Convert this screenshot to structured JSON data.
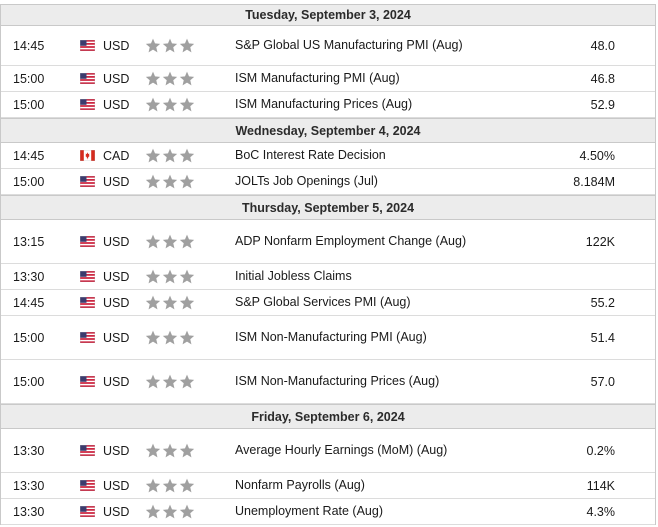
{
  "calendar": {
    "days": [
      {
        "date": "Tuesday, September 3, 2024",
        "events": [
          {
            "time": "14:45",
            "currency": "USD",
            "flag": "us-flag-icon",
            "importance": 3,
            "name": "S&P Global US Manufacturing PMI (Aug)",
            "actual": "48.0"
          },
          {
            "time": "15:00",
            "currency": "USD",
            "flag": "us-flag-icon",
            "importance": 3,
            "name": "ISM Manufacturing PMI (Aug)",
            "actual": "46.8"
          },
          {
            "time": "15:00",
            "currency": "USD",
            "flag": "us-flag-icon",
            "importance": 3,
            "name": "ISM Manufacturing Prices (Aug)",
            "actual": "52.9"
          }
        ]
      },
      {
        "date": "Wednesday, September 4, 2024",
        "events": [
          {
            "time": "14:45",
            "currency": "CAD",
            "flag": "ca-flag-icon",
            "importance": 3,
            "name": "BoC Interest Rate Decision",
            "actual": "4.50%"
          },
          {
            "time": "15:00",
            "currency": "USD",
            "flag": "us-flag-icon",
            "importance": 3,
            "name": "JOLTs Job Openings (Jul)",
            "actual": "8.184M"
          }
        ]
      },
      {
        "date": "Thursday, September 5, 2024",
        "events": [
          {
            "time": "13:15",
            "currency": "USD",
            "flag": "us-flag-icon",
            "importance": 3,
            "name": "ADP Nonfarm Employment Change (Aug)",
            "actual": "122K"
          },
          {
            "time": "13:30",
            "currency": "USD",
            "flag": "us-flag-icon",
            "importance": 3,
            "name": "Initial Jobless Claims",
            "actual": ""
          },
          {
            "time": "14:45",
            "currency": "USD",
            "flag": "us-flag-icon",
            "importance": 3,
            "name": "S&P Global Services PMI (Aug)",
            "actual": "55.2"
          },
          {
            "time": "15:00",
            "currency": "USD",
            "flag": "us-flag-icon",
            "importance": 3,
            "name": "ISM Non-Manufacturing PMI (Aug)",
            "actual": "51.4"
          },
          {
            "time": "15:00",
            "currency": "USD",
            "flag": "us-flag-icon",
            "importance": 3,
            "name": "ISM Non-Manufacturing Prices (Aug)",
            "actual": "57.0"
          }
        ]
      },
      {
        "date": "Friday, September 6, 2024",
        "events": [
          {
            "time": "13:30",
            "currency": "USD",
            "flag": "us-flag-icon",
            "importance": 3,
            "name": "Average Hourly Earnings (MoM) (Aug)",
            "actual": "0.2%"
          },
          {
            "time": "13:30",
            "currency": "USD",
            "flag": "us-flag-icon",
            "importance": 3,
            "name": "Nonfarm Payrolls (Aug)",
            "actual": "114K"
          },
          {
            "time": "13:30",
            "currency": "USD",
            "flag": "us-flag-icon",
            "importance": 3,
            "name": "Unemployment Rate (Aug)",
            "actual": "4.3%"
          }
        ]
      }
    ]
  },
  "colors": {
    "header_bg": "#ececec",
    "star": "#a0a0a0",
    "border": "#c9c9c9"
  }
}
